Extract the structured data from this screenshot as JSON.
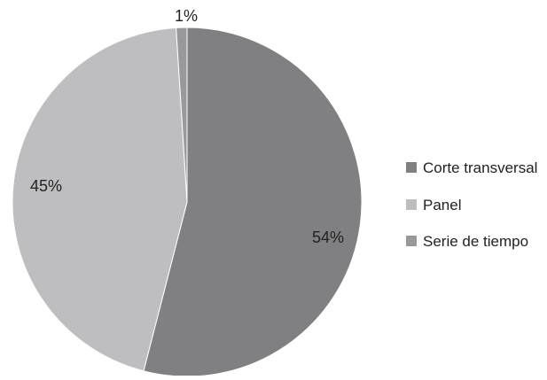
{
  "chart_data": {
    "type": "pie",
    "categories": [
      "Corte transversal",
      "Panel",
      "Serie de tiempo"
    ],
    "values": [
      54,
      45,
      1
    ],
    "labels": [
      "54%",
      "45%",
      "1%"
    ],
    "colors": [
      "#808083",
      "#bebec0",
      "#99999b"
    ],
    "legend_position": "right"
  }
}
